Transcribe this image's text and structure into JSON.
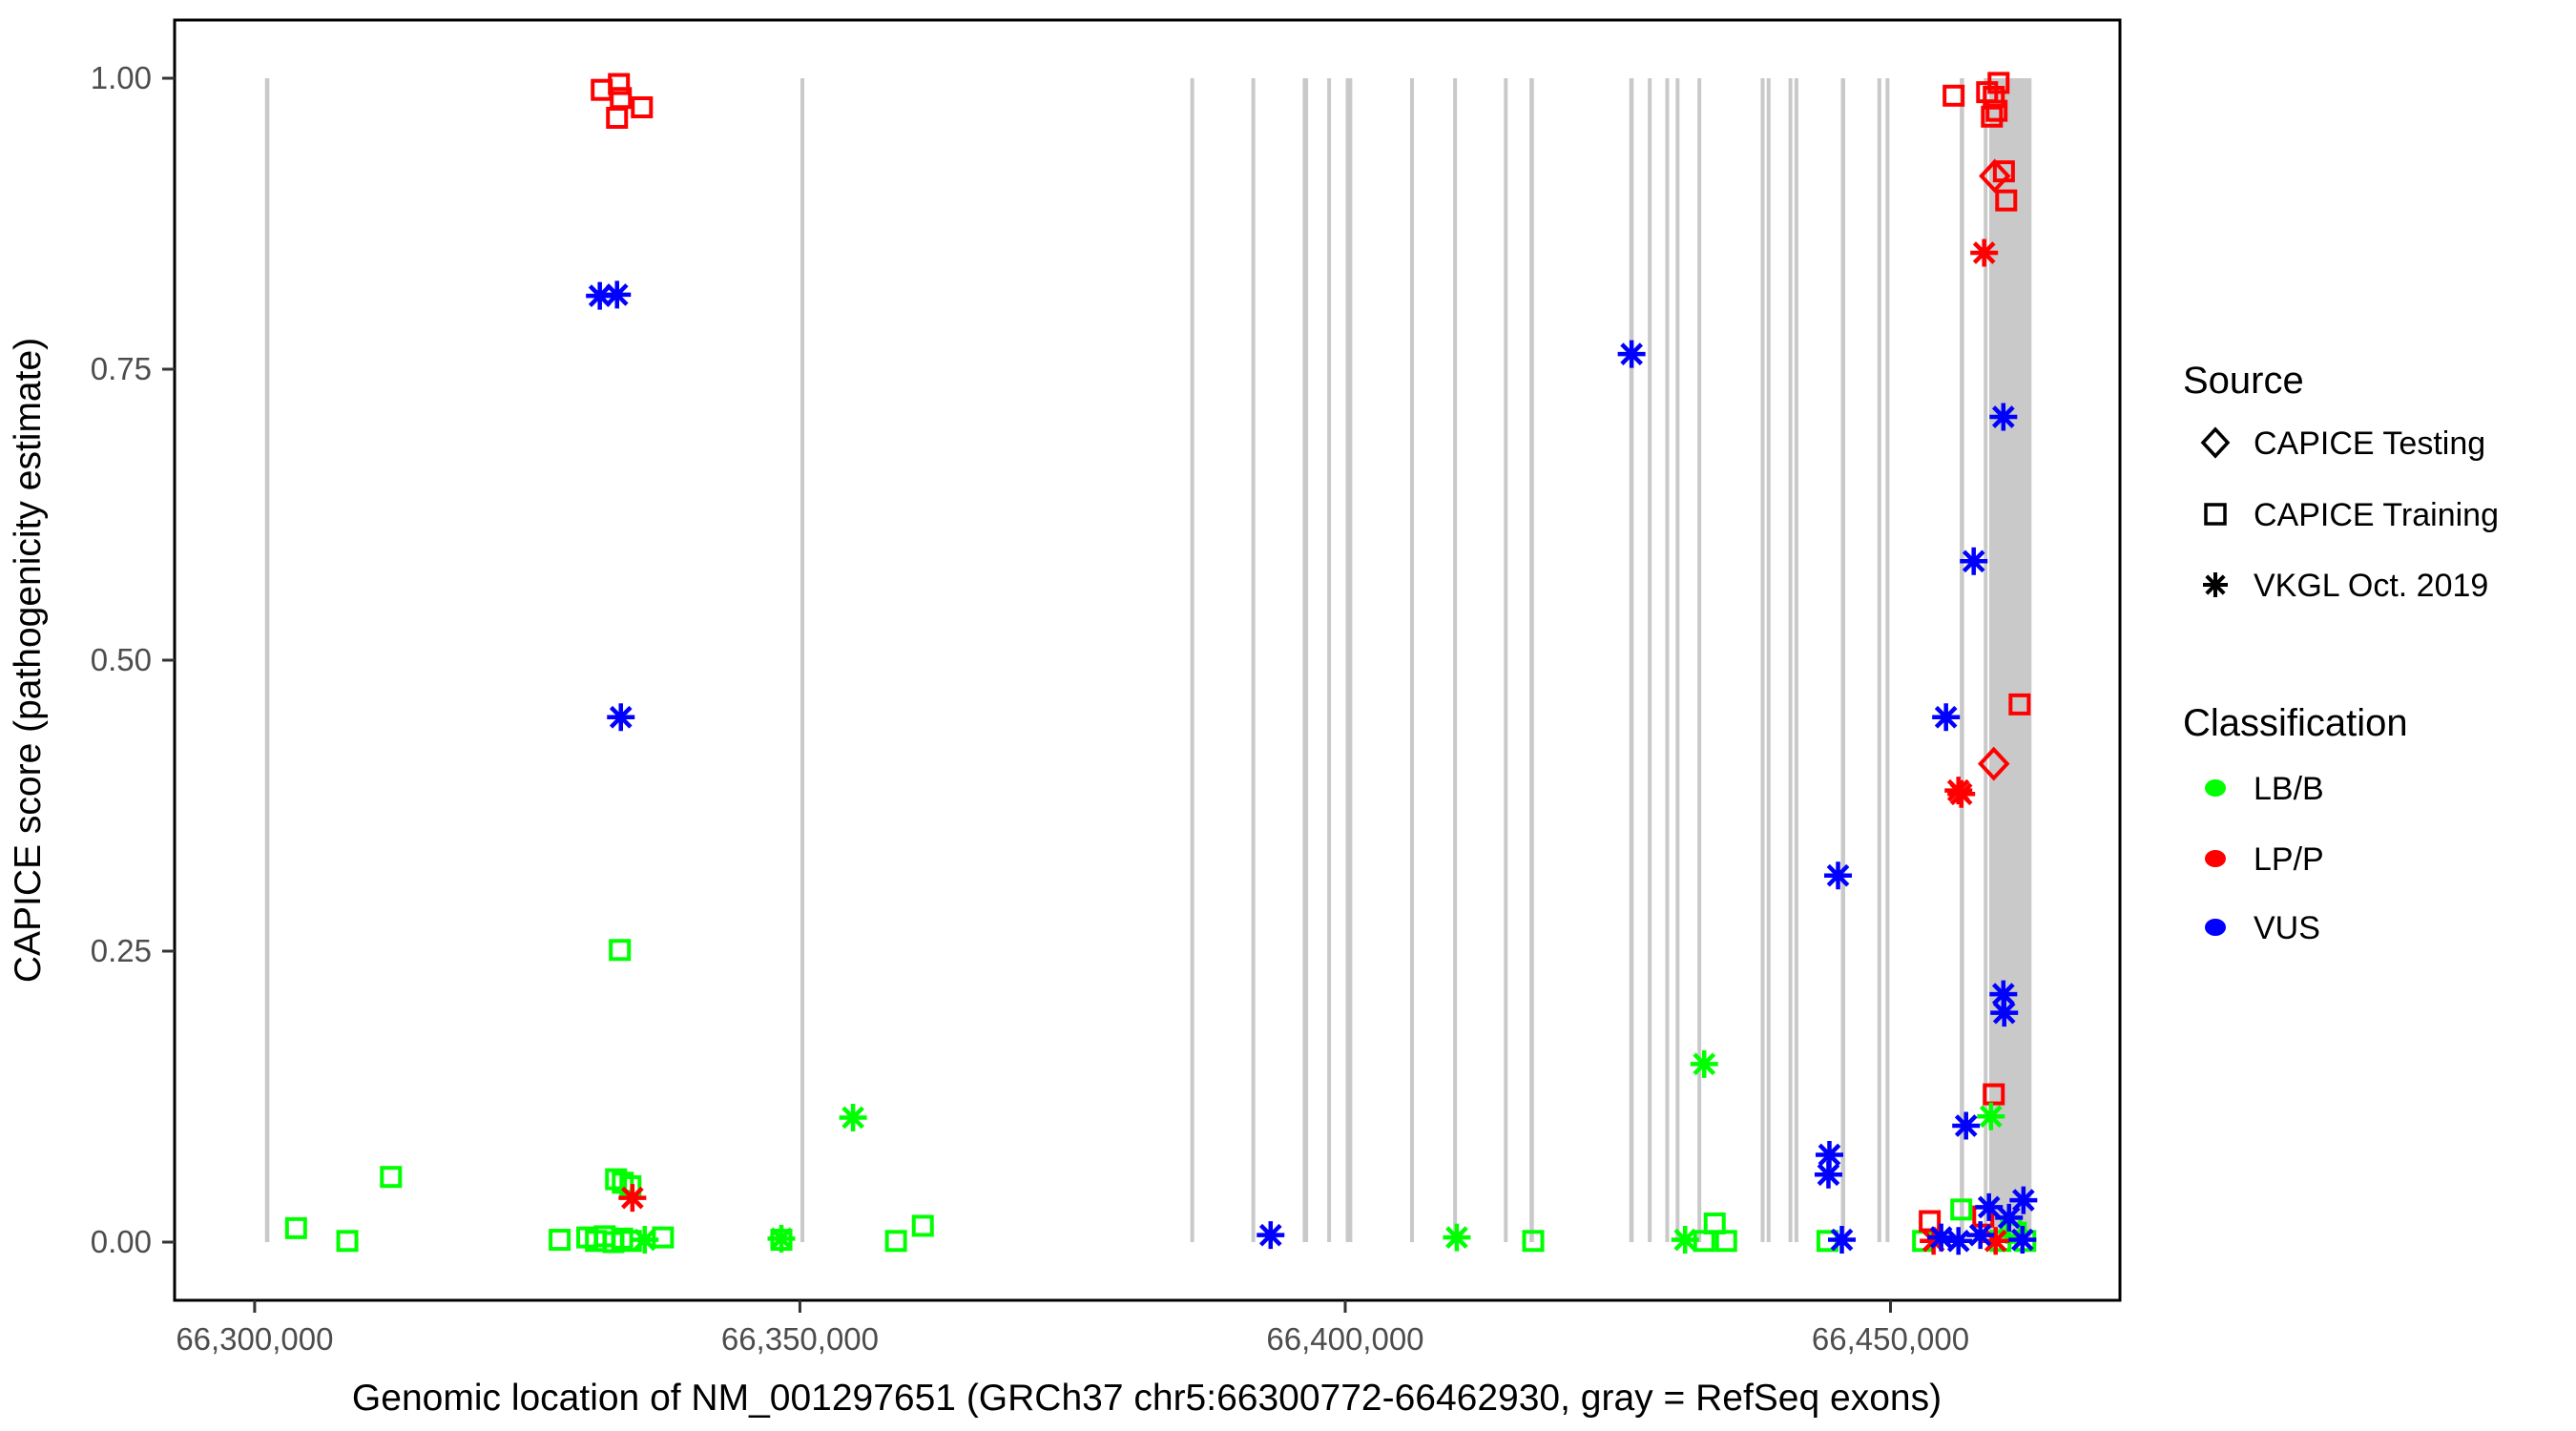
{
  "chart_data": {
    "type": "scatter",
    "title": "",
    "xlabel": "Genomic location of NM_001297651 (GRCh37 chr5:66300772-66462930, gray = RefSeq exons)",
    "ylabel": "CAPICE score (pathogenicity estimate)",
    "xlim": [
      66292660,
      66471040
    ],
    "ylim": [
      -0.05,
      1.05
    ],
    "grid": false,
    "legend_position": "right",
    "x_ticks": {
      "values": [
        66300000,
        66350000,
        66400000,
        66450000
      ],
      "labels": [
        "66,300,000",
        "66,350,000",
        "66,400,000",
        "66,450,000"
      ]
    },
    "y_ticks": {
      "values": [
        0,
        0.25,
        0.5,
        0.75,
        1
      ],
      "labels": [
        "0.00",
        "0.25",
        "0.50",
        "0.75",
        "1.00"
      ]
    },
    "colors": {
      "LB/B": "#00FF00",
      "LP/P": "#FF0000",
      "VUS": "#0000FF"
    },
    "shape_by_source": {
      "CAPICE Testing": "diamond",
      "CAPICE Training": "square",
      "VKGL Oct. 2019": "asterisk"
    },
    "exon_color": "#C9C9C9",
    "refseq_exons": [
      [
        66300950,
        66301350
      ],
      [
        66350050,
        66350400
      ],
      [
        66385800,
        66386150
      ],
      [
        66391400,
        66391750
      ],
      [
        66396100,
        66396600
      ],
      [
        66398350,
        66398700
      ],
      [
        66400050,
        66400650
      ],
      [
        66405950,
        66406300
      ],
      [
        66409900,
        66410250
      ],
      [
        66414550,
        66414900
      ],
      [
        66416900,
        66417300
      ],
      [
        66426050,
        66426450
      ],
      [
        66427750,
        66428100
      ],
      [
        66429350,
        66429700
      ],
      [
        66430300,
        66430650
      ],
      [
        66432300,
        66432650
      ],
      [
        66438100,
        66438450
      ],
      [
        66438650,
        66439000
      ],
      [
        66440650,
        66441000
      ],
      [
        66441200,
        66441550
      ],
      [
        66445450,
        66445850
      ],
      [
        66448800,
        66449150
      ],
      [
        66449550,
        66449900
      ],
      [
        66456350,
        66456750
      ],
      [
        66458550,
        66458900
      ],
      [
        66459050,
        66462930
      ]
    ],
    "source_codes": {
      "tr": "CAPICE Training",
      "te": "CAPICE Testing",
      "vk": "VKGL Oct. 2019"
    },
    "class_codes": {
      "lb": "LB/B",
      "lp": "LP/P",
      "vus": "VUS"
    },
    "points": [
      [
        66303800,
        0.012,
        "tr",
        "lb"
      ],
      [
        66308500,
        0.001,
        "tr",
        "lb"
      ],
      [
        66312500,
        0.056,
        "tr",
        "lb"
      ],
      [
        66327970,
        0.002,
        "tr",
        "lb"
      ],
      [
        66330500,
        0.004,
        "tr",
        "lb"
      ],
      [
        66331300,
        0.001,
        "tr",
        "lb"
      ],
      [
        66332100,
        0.005,
        "tr",
        "lb"
      ],
      [
        66332900,
        0.0,
        "tr",
        "lb"
      ],
      [
        66333700,
        0.003,
        "tr",
        "lb"
      ],
      [
        66334500,
        0.001,
        "tr",
        "lb"
      ],
      [
        66337440,
        0.004,
        "tr",
        "lb"
      ],
      [
        66333490,
        0.251,
        "tr",
        "lb"
      ],
      [
        66333140,
        0.054,
        "tr",
        "lb"
      ],
      [
        66333760,
        0.051,
        "tr",
        "lb"
      ],
      [
        66334460,
        0.048,
        "tr",
        "lb"
      ],
      [
        66348300,
        0.002,
        "tr",
        "lb"
      ],
      [
        66358810,
        0.001,
        "tr",
        "lb"
      ],
      [
        66361270,
        0.014,
        "tr",
        "lb"
      ],
      [
        66417240,
        0.001,
        "tr",
        "lb"
      ],
      [
        66432920,
        0.001,
        "tr",
        "lb"
      ],
      [
        66433880,
        0.016,
        "tr",
        "lb"
      ],
      [
        66434930,
        0.001,
        "tr",
        "lb"
      ],
      [
        66444220,
        0.001,
        "tr",
        "lb"
      ],
      [
        66452990,
        0.001,
        "tr",
        "lb"
      ],
      [
        66456490,
        0.028,
        "tr",
        "lb"
      ],
      [
        66460080,
        0.001,
        "tr",
        "lb"
      ],
      [
        66461050,
        0.013,
        "tr",
        "lb"
      ],
      [
        66461490,
        0.008,
        "tr",
        "lb"
      ],
      [
        66462360,
        0.001,
        "tr",
        "lb"
      ],
      [
        66335770,
        0.002,
        "vk",
        "lb"
      ],
      [
        66348300,
        0.003,
        "vk",
        "lb"
      ],
      [
        66354870,
        0.107,
        "vk",
        "lb"
      ],
      [
        66410230,
        0.004,
        "vk",
        "lb"
      ],
      [
        66431170,
        0.002,
        "vk",
        "lb"
      ],
      [
        66432920,
        0.153,
        "vk",
        "lb"
      ],
      [
        66459210,
        0.108,
        "vk",
        "lb"
      ],
      [
        66331830,
        0.99,
        "tr",
        "lp"
      ],
      [
        66333400,
        0.995,
        "tr",
        "lp"
      ],
      [
        66333580,
        0.983,
        "tr",
        "lp"
      ],
      [
        66335510,
        0.975,
        "tr",
        "lp"
      ],
      [
        66333230,
        0.966,
        "tr",
        "lp"
      ],
      [
        66455790,
        0.985,
        "tr",
        "lp"
      ],
      [
        66459910,
        0.996,
        "tr",
        "lp"
      ],
      [
        66458860,
        0.988,
        "tr",
        "lp"
      ],
      [
        66459470,
        0.984,
        "tr",
        "lp"
      ],
      [
        66459730,
        0.972,
        "tr",
        "lp"
      ],
      [
        66459300,
        0.967,
        "tr",
        "lp"
      ],
      [
        66460400,
        0.92,
        "tr",
        "lp"
      ],
      [
        66460610,
        0.895,
        "tr",
        "lp"
      ],
      [
        66461840,
        0.462,
        "tr",
        "lp"
      ],
      [
        66459470,
        0.127,
        "tr",
        "lp"
      ],
      [
        66453600,
        0.018,
        "tr",
        "lp"
      ],
      [
        66458510,
        0.022,
        "tr",
        "lp"
      ],
      [
        66459560,
        0.916,
        "te",
        "lp"
      ],
      [
        66459470,
        0.411,
        "te",
        "lp"
      ],
      [
        66334640,
        0.038,
        "vk",
        "lp"
      ],
      [
        66456230,
        0.388,
        "vk",
        "lp"
      ],
      [
        66456490,
        0.385,
        "vk",
        "lp"
      ],
      [
        66458590,
        0.85,
        "vk",
        "lp"
      ],
      [
        66453950,
        0.001,
        "vk",
        "lp"
      ],
      [
        66459640,
        0.001,
        "vk",
        "lp"
      ],
      [
        66331650,
        0.813,
        "vk",
        "vus"
      ],
      [
        66333230,
        0.814,
        "vk",
        "vus"
      ],
      [
        66333580,
        0.451,
        "vk",
        "vus"
      ],
      [
        66393160,
        0.006,
        "vk",
        "vus"
      ],
      [
        66426260,
        0.763,
        "vk",
        "vus"
      ],
      [
        66444400,
        0.075,
        "vk",
        "vus"
      ],
      [
        66444310,
        0.058,
        "vk",
        "vus"
      ],
      [
        66445190,
        0.315,
        "vk",
        "vus"
      ],
      [
        66445540,
        0.002,
        "vk",
        "vus"
      ],
      [
        66455090,
        0.451,
        "vk",
        "vus"
      ],
      [
        66457630,
        0.585,
        "vk",
        "vus"
      ],
      [
        66460350,
        0.709,
        "vk",
        "vus"
      ],
      [
        66460350,
        0.213,
        "vk",
        "vus"
      ],
      [
        66460430,
        0.197,
        "vk",
        "vus"
      ],
      [
        66456930,
        0.1,
        "vk",
        "vus"
      ],
      [
        66459030,
        0.03,
        "vk",
        "vus"
      ],
      [
        66462190,
        0.036,
        "vk",
        "vus"
      ],
      [
        66460870,
        0.021,
        "vk",
        "vus"
      ],
      [
        66454650,
        0.004,
        "vk",
        "vus"
      ],
      [
        66456230,
        0.001,
        "vk",
        "vus"
      ],
      [
        66458240,
        0.006,
        "vk",
        "vus"
      ],
      [
        66462100,
        0.002,
        "vk",
        "vus"
      ]
    ]
  },
  "legend": {
    "source": {
      "title": "Source",
      "items": [
        {
          "label": "CAPICE Testing",
          "shape": "diamond"
        },
        {
          "label": "CAPICE Training",
          "shape": "square"
        },
        {
          "label": "VKGL Oct. 2019",
          "shape": "asterisk"
        }
      ]
    },
    "classification": {
      "title": "Classification",
      "items": [
        {
          "label": "LB/B",
          "color": "#00FF00"
        },
        {
          "label": "LP/P",
          "color": "#FF0000"
        },
        {
          "label": "VUS",
          "color": "#0000FF"
        }
      ]
    }
  }
}
